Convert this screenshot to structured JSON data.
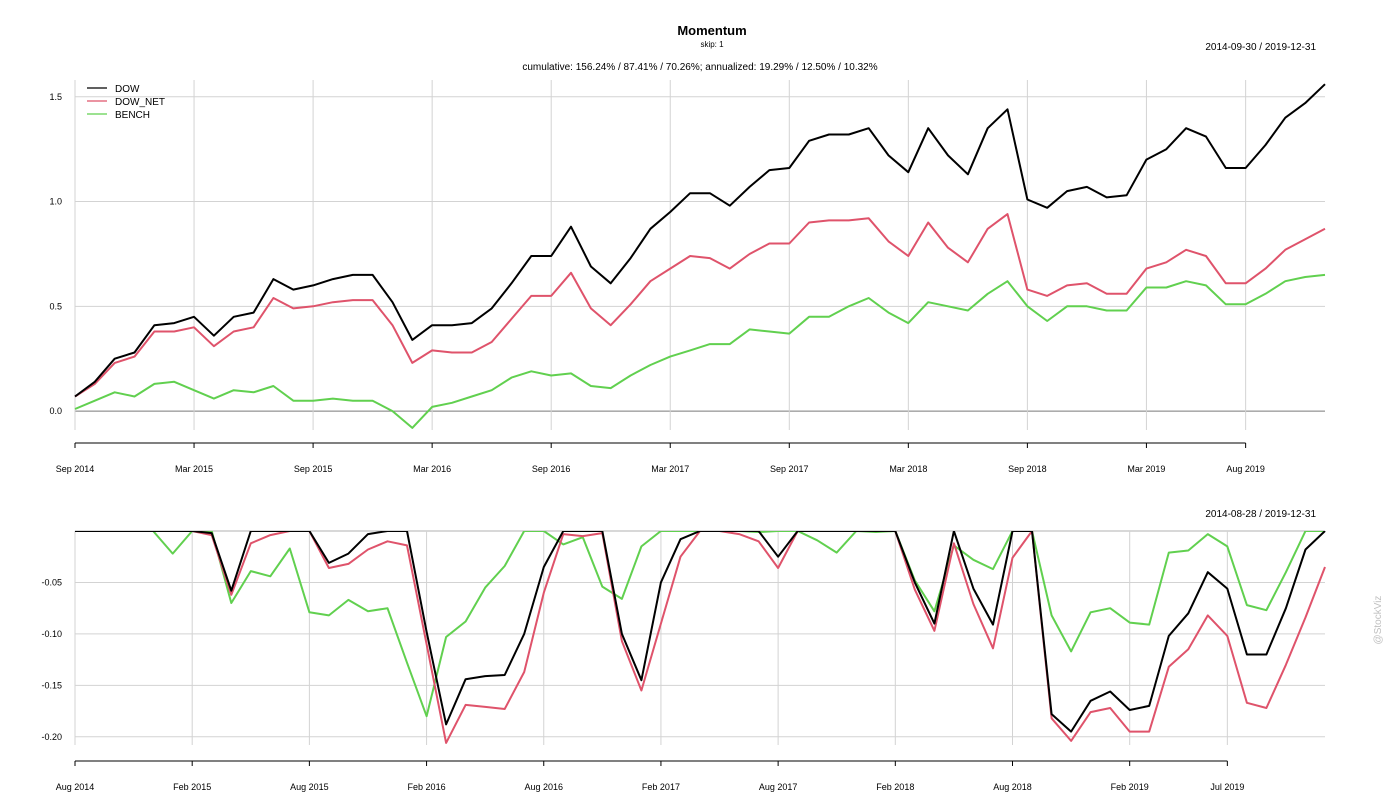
{
  "title": "Momentum",
  "subtitle": "skip: 1",
  "chart_data": [
    {
      "type": "line",
      "title": "cumulative: 156.24% / 87.41% / 70.26%; annualized: 19.29% / 12.50% / 10.32%",
      "date_range": "2014-09-30 / 2019-12-31",
      "x": [
        "2014-09",
        "2014-10",
        "2014-11",
        "2014-12",
        "2015-01",
        "2015-02",
        "2015-03",
        "2015-04",
        "2015-05",
        "2015-06",
        "2015-07",
        "2015-08",
        "2015-09",
        "2015-10",
        "2015-11",
        "2015-12",
        "2016-01",
        "2016-02",
        "2016-03",
        "2016-04",
        "2016-05",
        "2016-06",
        "2016-07",
        "2016-08",
        "2016-09",
        "2016-10",
        "2016-11",
        "2016-12",
        "2017-01",
        "2017-02",
        "2017-03",
        "2017-04",
        "2017-05",
        "2017-06",
        "2017-07",
        "2017-08",
        "2017-09",
        "2017-10",
        "2017-11",
        "2017-12",
        "2018-01",
        "2018-02",
        "2018-03",
        "2018-04",
        "2018-05",
        "2018-06",
        "2018-07",
        "2018-08",
        "2018-09",
        "2018-10",
        "2018-11",
        "2018-12",
        "2019-01",
        "2019-02",
        "2019-03",
        "2019-04",
        "2019-05",
        "2019-06",
        "2019-07",
        "2019-08",
        "2019-09",
        "2019-10",
        "2019-11",
        "2019-12"
      ],
      "x_tick_labels": [
        "Sep 2014",
        "Mar 2015",
        "Sep 2015",
        "Mar 2016",
        "Sep 2016",
        "Mar 2017",
        "Sep 2017",
        "Mar 2018",
        "Sep 2018",
        "Mar 2019",
        "Aug 2019"
      ],
      "x_tick_index": [
        0,
        6,
        12,
        18,
        24,
        30,
        36,
        42,
        48,
        54,
        59
      ],
      "y_ticks": [
        0.0,
        0.5,
        1.0,
        1.5
      ],
      "y_tick_labels": [
        "0.0",
        "0.5",
        "1.0",
        "1.5"
      ],
      "ylim": [
        -0.09,
        1.58
      ],
      "legend_position": "top-left",
      "grid": true,
      "series": [
        {
          "name": "DOW",
          "color": "#000000",
          "values": [
            0.07,
            0.14,
            0.25,
            0.28,
            0.41,
            0.42,
            0.45,
            0.36,
            0.45,
            0.47,
            0.63,
            0.58,
            0.6,
            0.63,
            0.65,
            0.65,
            0.52,
            0.34,
            0.41,
            0.41,
            0.42,
            0.49,
            0.61,
            0.74,
            0.74,
            0.88,
            0.69,
            0.61,
            0.73,
            0.87,
            0.95,
            1.04,
            1.04,
            0.98,
            1.07,
            1.15,
            1.16,
            1.29,
            1.32,
            1.32,
            1.35,
            1.22,
            1.14,
            1.35,
            1.22,
            1.13,
            1.35,
            1.44,
            1.01,
            0.97,
            1.05,
            1.07,
            1.02,
            1.03,
            1.2,
            1.25,
            1.35,
            1.31,
            1.16,
            1.16,
            1.27,
            1.4,
            1.47,
            1.56
          ]
        },
        {
          "name": "DOW_NET",
          "color": "#DF536B",
          "values": [
            0.07,
            0.13,
            0.23,
            0.26,
            0.38,
            0.38,
            0.4,
            0.31,
            0.38,
            0.4,
            0.54,
            0.49,
            0.5,
            0.52,
            0.53,
            0.53,
            0.41,
            0.23,
            0.29,
            0.28,
            0.28,
            0.33,
            0.44,
            0.55,
            0.55,
            0.66,
            0.49,
            0.41,
            0.51,
            0.62,
            0.68,
            0.74,
            0.73,
            0.68,
            0.75,
            0.8,
            0.8,
            0.9,
            0.91,
            0.91,
            0.92,
            0.81,
            0.74,
            0.9,
            0.78,
            0.71,
            0.87,
            0.94,
            0.58,
            0.55,
            0.6,
            0.61,
            0.56,
            0.56,
            0.68,
            0.71,
            0.77,
            0.74,
            0.61,
            0.61,
            0.68,
            0.77,
            0.82,
            0.87
          ]
        },
        {
          "name": "BENCH",
          "color": "#61D04F",
          "values": [
            0.01,
            0.05,
            0.09,
            0.07,
            0.13,
            0.14,
            0.1,
            0.06,
            0.1,
            0.09,
            0.12,
            0.05,
            0.05,
            0.06,
            0.05,
            0.05,
            0.0,
            -0.08,
            0.02,
            0.04,
            0.07,
            0.1,
            0.16,
            0.19,
            0.17,
            0.18,
            0.12,
            0.11,
            0.17,
            0.22,
            0.26,
            0.29,
            0.32,
            0.32,
            0.39,
            0.38,
            0.37,
            0.45,
            0.45,
            0.5,
            0.54,
            0.47,
            0.42,
            0.52,
            0.5,
            0.48,
            0.56,
            0.62,
            0.5,
            0.43,
            0.5,
            0.5,
            0.48,
            0.48,
            0.59,
            0.59,
            0.62,
            0.6,
            0.51,
            0.51,
            0.56,
            0.62,
            0.64,
            0.65
          ]
        }
      ]
    },
    {
      "type": "line",
      "title": "",
      "date_range": "2014-08-28 / 2019-12-31",
      "x": [
        "2014-08",
        "2014-09",
        "2014-10",
        "2014-11",
        "2014-12",
        "2015-01",
        "2015-02",
        "2015-03",
        "2015-04",
        "2015-05",
        "2015-06",
        "2015-07",
        "2015-08",
        "2015-09",
        "2015-10",
        "2015-11",
        "2015-12",
        "2016-01",
        "2016-02",
        "2016-03",
        "2016-04",
        "2016-05",
        "2016-06",
        "2016-07",
        "2016-08",
        "2016-09",
        "2016-10",
        "2016-11",
        "2016-12",
        "2017-01",
        "2017-02",
        "2017-03",
        "2017-04",
        "2017-05",
        "2017-06",
        "2017-07",
        "2017-08",
        "2017-09",
        "2017-10",
        "2017-11",
        "2017-12",
        "2018-01",
        "2018-02",
        "2018-03",
        "2018-04",
        "2018-05",
        "2018-06",
        "2018-07",
        "2018-08",
        "2018-09",
        "2018-10",
        "2018-11",
        "2018-12",
        "2019-01",
        "2019-02",
        "2019-03",
        "2019-04",
        "2019-05",
        "2019-06",
        "2019-07",
        "2019-08",
        "2019-09",
        "2019-10",
        "2019-11",
        "2019-12"
      ],
      "x_tick_labels": [
        "Aug 2014",
        "Feb 2015",
        "Aug 2015",
        "Feb 2016",
        "Aug 2016",
        "Feb 2017",
        "Aug 2017",
        "Feb 2018",
        "Aug 2018",
        "Feb 2019",
        "Jul 2019"
      ],
      "x_tick_index": [
        0,
        6,
        12,
        18,
        24,
        30,
        36,
        42,
        48,
        54,
        59
      ],
      "y_ticks": [
        -0.05,
        -0.1,
        -0.15,
        -0.2
      ],
      "y_tick_labels": [
        "-0.05",
        "-0.10",
        "-0.15",
        "-0.20"
      ],
      "ylim": [
        -0.208,
        0.0
      ],
      "grid": true,
      "series": [
        {
          "name": "DOW",
          "color": "#000000",
          "values": [
            0,
            0,
            0,
            0,
            0,
            0,
            0,
            -0.002,
            -0.058,
            0,
            0,
            0,
            0,
            -0.031,
            -0.022,
            -0.003,
            0,
            0,
            -0.098,
            -0.188,
            -0.144,
            -0.141,
            -0.14,
            -0.1,
            -0.035,
            0,
            0,
            0,
            -0.1,
            -0.145,
            -0.05,
            -0.008,
            0,
            0,
            0,
            0,
            -0.025,
            0,
            0,
            0,
            0,
            0,
            0,
            -0.05,
            -0.09,
            0,
            -0.056,
            -0.091,
            0,
            0,
            -0.178,
            -0.195,
            -0.165,
            -0.156,
            -0.174,
            -0.17,
            -0.102,
            -0.08,
            -0.04,
            -0.056,
            -0.12,
            -0.12,
            -0.075,
            -0.018,
            0
          ]
        },
        {
          "name": "DOW_NET",
          "color": "#DF536B",
          "values": [
            0,
            0,
            0,
            0,
            0,
            0,
            0,
            -0.004,
            -0.062,
            -0.012,
            -0.004,
            0,
            0,
            -0.036,
            -0.032,
            -0.018,
            -0.01,
            -0.014,
            -0.11,
            -0.206,
            -0.169,
            -0.171,
            -0.173,
            -0.137,
            -0.06,
            -0.003,
            -0.005,
            -0.002,
            -0.107,
            -0.155,
            -0.09,
            -0.025,
            0,
            0,
            -0.003,
            -0.01,
            -0.036,
            0,
            0,
            0,
            0,
            0,
            0,
            -0.057,
            -0.097,
            -0.012,
            -0.071,
            -0.114,
            -0.026,
            0,
            -0.182,
            -0.204,
            -0.176,
            -0.172,
            -0.195,
            -0.195,
            -0.132,
            -0.115,
            -0.082,
            -0.102,
            -0.167,
            -0.172,
            -0.13,
            -0.084,
            -0.035
          ]
        },
        {
          "name": "BENCH",
          "color": "#61D04F",
          "values": [
            0,
            0,
            0,
            0,
            0,
            -0.022,
            0,
            0,
            -0.07,
            -0.039,
            -0.044,
            -0.017,
            -0.079,
            -0.082,
            -0.067,
            -0.078,
            -0.075,
            -0.128,
            -0.18,
            -0.103,
            -0.088,
            -0.055,
            -0.034,
            0,
            0,
            -0.013,
            -0.006,
            -0.054,
            -0.066,
            -0.015,
            0,
            0,
            0,
            0,
            0,
            -0.001,
            0,
            0,
            -0.009,
            -0.021,
            0,
            -0.001,
            0,
            -0.048,
            -0.078,
            -0.014,
            -0.028,
            -0.037,
            0,
            0,
            -0.082,
            -0.117,
            -0.079,
            -0.075,
            -0.089,
            -0.091,
            -0.021,
            -0.019,
            -0.003,
            -0.015,
            -0.072,
            -0.077,
            -0.04,
            0,
            0
          ]
        }
      ]
    }
  ],
  "watermark": "@StockViz"
}
